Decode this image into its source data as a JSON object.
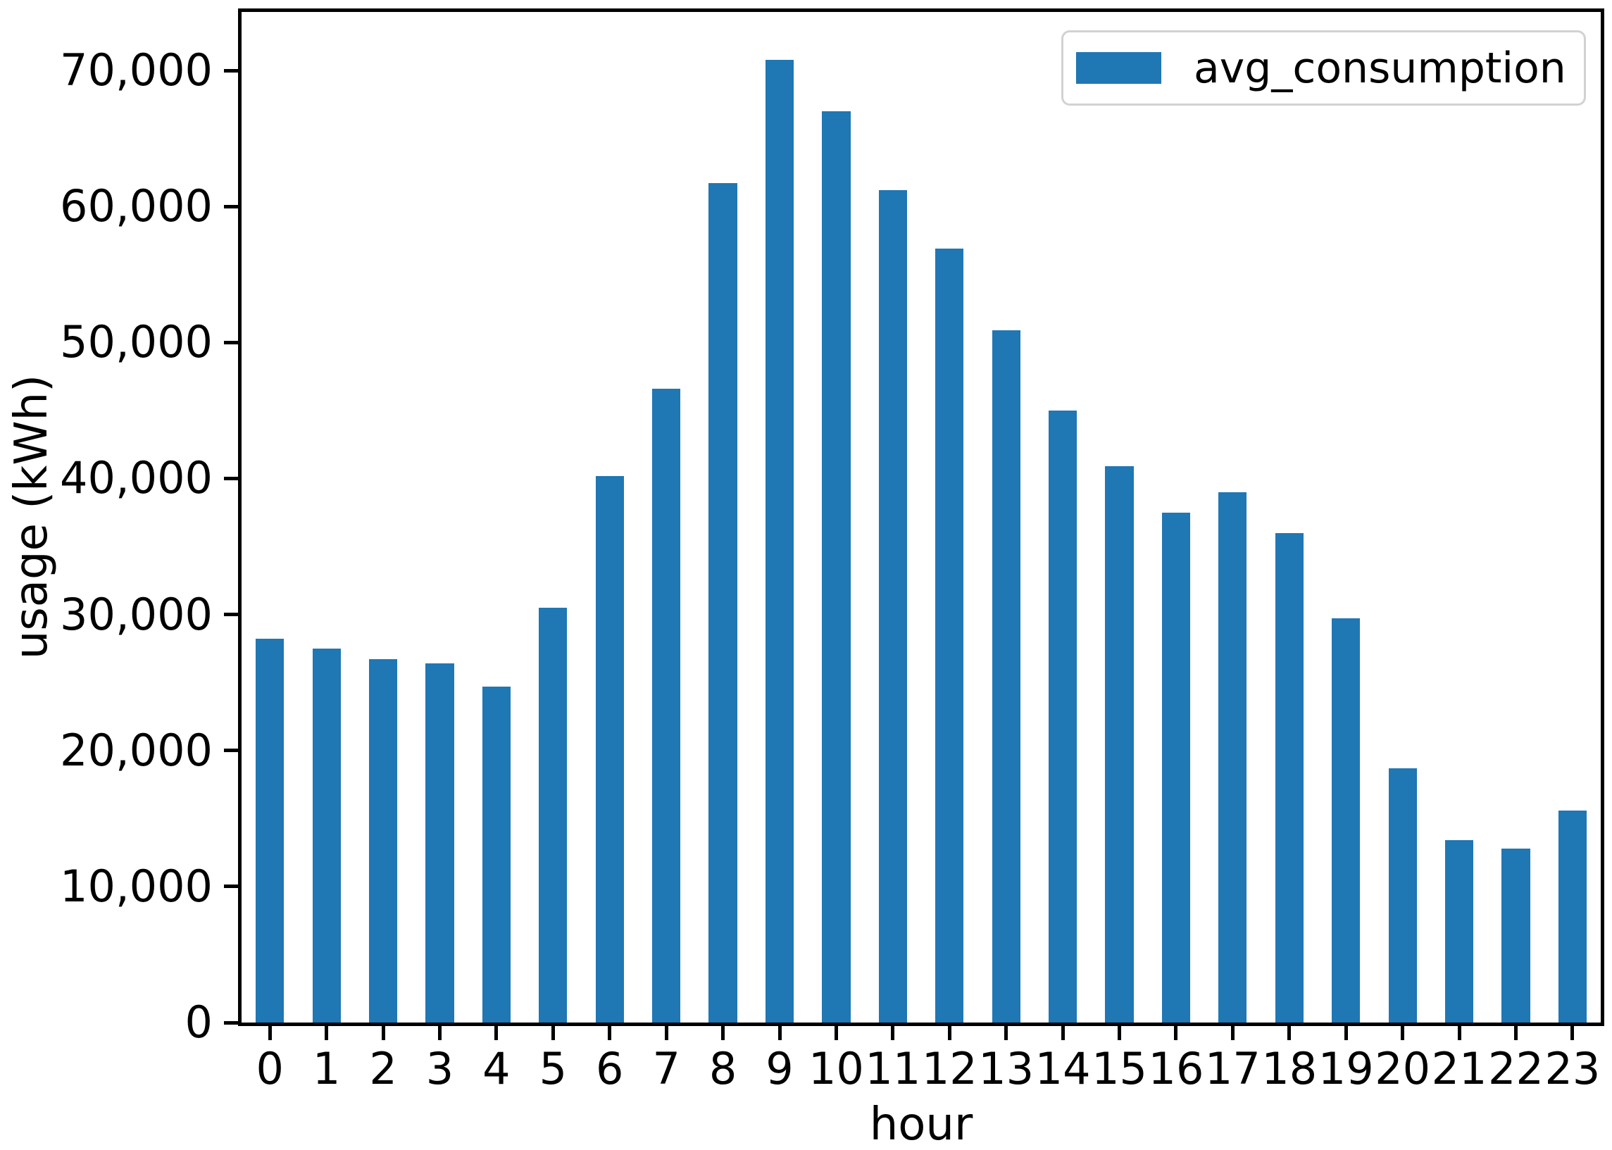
{
  "figure": {
    "background": "#ffffff",
    "bar_color": "#1f77b4",
    "axis_color": "#000000",
    "legend_border_color": "#d2d2d2"
  },
  "legend": {
    "label": "avg_consumption",
    "swatch": "blue-bar-swatch"
  },
  "chart_data": {
    "type": "bar",
    "title": "",
    "xlabel": "hour",
    "ylabel": "usage (kWh)",
    "categories": [
      "0",
      "1",
      "2",
      "3",
      "4",
      "5",
      "6",
      "7",
      "8",
      "9",
      "10",
      "11",
      "12",
      "13",
      "14",
      "15",
      "16",
      "17",
      "18",
      "19",
      "20",
      "21",
      "22",
      "23"
    ],
    "series": [
      {
        "name": "avg_consumption",
        "values": [
          28200,
          27500,
          26700,
          26400,
          24700,
          30500,
          40200,
          46600,
          61700,
          70800,
          67000,
          61200,
          56900,
          50900,
          45000,
          40900,
          37500,
          39000,
          36000,
          29700,
          18700,
          13400,
          12800,
          15600
        ]
      }
    ],
    "ylim": [
      0,
      74300
    ],
    "yticks": [
      {
        "value": 0,
        "label": "0"
      },
      {
        "value": 10000,
        "label": "10,000"
      },
      {
        "value": 20000,
        "label": "20,000"
      },
      {
        "value": 30000,
        "label": "30,000"
      },
      {
        "value": 40000,
        "label": "40,000"
      },
      {
        "value": 50000,
        "label": "50,000"
      },
      {
        "value": 60000,
        "label": "60,000"
      },
      {
        "value": 70000,
        "label": "70,000"
      }
    ],
    "bar_width_fraction": 0.5,
    "grid": false,
    "legend_position": "upper right"
  }
}
